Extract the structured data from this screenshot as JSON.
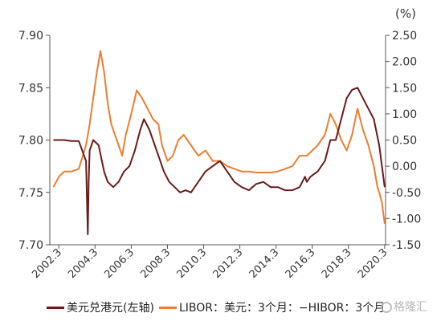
{
  "chart_data": {
    "type": "line",
    "unit_label": "(%)",
    "x_tick_labels": [
      "2002.3",
      "2004.3",
      "2006.3",
      "2008.3",
      "2010.3",
      "2012.3",
      "2014.3",
      "2016.3",
      "2018.3",
      "2020.3"
    ],
    "left_axis": {
      "ylim": [
        7.7,
        7.9
      ],
      "ticks": [
        "7.70",
        "7.75",
        "7.80",
        "7.85",
        "7.90"
      ]
    },
    "right_axis": {
      "ylim": [
        -1.5,
        2.5
      ],
      "ticks": [
        "-1.50",
        "-1.00",
        "-0.50",
        "0.00",
        "0.50",
        "1.00",
        "1.50",
        "2.00",
        "2.50"
      ]
    },
    "legend_position": "bottom",
    "series": [
      {
        "name": "美元兑港元(左轴)",
        "axis": "left",
        "color": "#6b1a1a",
        "x": [
          2002.0,
          2002.3,
          2002.6,
          2003.0,
          2003.4,
          2003.8,
          2003.9,
          2003.95,
          2004.0,
          2004.2,
          2004.5,
          2004.8,
          2005.0,
          2005.3,
          2005.6,
          2005.9,
          2006.2,
          2006.5,
          2006.8,
          2007.0,
          2007.3,
          2007.6,
          2007.9,
          2008.1,
          2008.4,
          2008.7,
          2009.0,
          2009.3,
          2009.6,
          2010.0,
          2010.4,
          2010.8,
          2011.2,
          2011.6,
          2012.0,
          2012.4,
          2012.8,
          2013.2,
          2013.6,
          2014.0,
          2014.4,
          2014.8,
          2015.2,
          2015.6,
          2015.9,
          2016.0,
          2016.2,
          2016.6,
          2017.0,
          2017.3,
          2017.6,
          2017.9,
          2018.2,
          2018.5,
          2018.8,
          2019.1,
          2019.4,
          2019.7,
          2020.0,
          2020.3
        ],
        "values": [
          7.8,
          7.8,
          7.8,
          7.799,
          7.799,
          7.78,
          7.71,
          7.76,
          7.79,
          7.8,
          7.795,
          7.77,
          7.76,
          7.755,
          7.76,
          7.77,
          7.775,
          7.79,
          7.81,
          7.82,
          7.81,
          7.795,
          7.78,
          7.77,
          7.76,
          7.755,
          7.75,
          7.752,
          7.75,
          7.76,
          7.77,
          7.775,
          7.78,
          7.77,
          7.76,
          7.755,
          7.752,
          7.758,
          7.76,
          7.755,
          7.755,
          7.752,
          7.752,
          7.755,
          7.765,
          7.76,
          7.765,
          7.77,
          7.78,
          7.8,
          7.8,
          7.82,
          7.84,
          7.848,
          7.85,
          7.84,
          7.83,
          7.82,
          7.795,
          7.755
        ]
      },
      {
        "name": "LIBOR：美元：3个月：−HIBOR：3个月",
        "axis": "right",
        "color": "#ed7d31",
        "x": [
          2002.0,
          2002.3,
          2002.6,
          2003.0,
          2003.4,
          2003.8,
          2004.0,
          2004.2,
          2004.4,
          2004.6,
          2004.8,
          2005.0,
          2005.2,
          2005.5,
          2005.8,
          2006.0,
          2006.3,
          2006.6,
          2006.9,
          2007.2,
          2007.5,
          2007.8,
          2008.0,
          2008.3,
          2008.6,
          2008.9,
          2009.2,
          2009.6,
          2010.0,
          2010.4,
          2010.8,
          2011.2,
          2011.6,
          2012.0,
          2012.4,
          2012.8,
          2013.2,
          2013.6,
          2014.0,
          2014.4,
          2014.8,
          2015.2,
          2015.6,
          2016.0,
          2016.3,
          2016.6,
          2017.0,
          2017.3,
          2017.6,
          2017.9,
          2018.2,
          2018.5,
          2018.8,
          2019.1,
          2019.4,
          2019.7,
          2019.9,
          2020.0,
          2020.15,
          2020.3
        ],
        "values": [
          -0.4,
          -0.2,
          -0.1,
          -0.1,
          -0.05,
          0.4,
          0.8,
          1.3,
          1.8,
          2.2,
          1.8,
          1.2,
          0.8,
          0.5,
          0.2,
          0.6,
          1.0,
          1.45,
          1.3,
          1.1,
          0.9,
          0.8,
          0.4,
          0.1,
          0.2,
          0.5,
          0.6,
          0.4,
          0.2,
          0.3,
          0.1,
          0.1,
          0.0,
          -0.05,
          -0.1,
          -0.1,
          -0.12,
          -0.12,
          -0.12,
          -0.1,
          -0.05,
          0.0,
          0.2,
          0.2,
          0.3,
          0.4,
          0.6,
          1.0,
          0.8,
          0.5,
          0.3,
          0.6,
          1.1,
          0.7,
          0.4,
          0.0,
          -0.4,
          -0.5,
          -0.7,
          -1.1
        ]
      }
    ]
  },
  "watermark": {
    "text": "格隆汇"
  }
}
